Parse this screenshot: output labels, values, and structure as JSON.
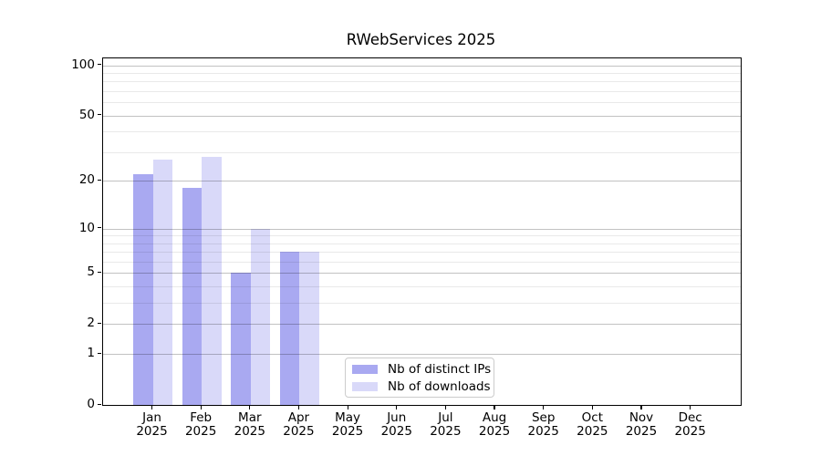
{
  "figure": {
    "background": "#ffffff",
    "text_color": "#000000"
  },
  "chart_data": {
    "type": "bar",
    "title": "RWebServices 2025",
    "categories": [
      "Jan",
      "Feb",
      "Mar",
      "Apr",
      "May",
      "Jun",
      "Jul",
      "Aug",
      "Sep",
      "Oct",
      "Nov",
      "Dec"
    ],
    "category_year_suffix": "2025",
    "series": [
      {
        "name": "Nb of distinct IPs",
        "color": "#a9a9f1",
        "values": [
          22,
          18,
          5,
          7,
          0,
          0,
          0,
          0,
          0,
          0,
          0,
          0
        ]
      },
      {
        "name": "Nb of downloads",
        "color": "#d9d9f9",
        "values": [
          27,
          28,
          10,
          7,
          0,
          0,
          0,
          0,
          0,
          0,
          0,
          0
        ]
      }
    ],
    "xlabel": "",
    "ylabel": "",
    "yscale": "log1p",
    "ylim": [
      0,
      110
    ],
    "yticks": [
      0,
      1,
      2,
      5,
      10,
      20,
      50,
      100
    ],
    "ytick_labels": [
      "0",
      "1",
      "2",
      "5",
      "10",
      "20",
      "50",
      "100"
    ],
    "minor_gridlines": [
      3,
      4,
      6,
      7,
      8,
      9,
      30,
      40,
      60,
      70,
      80,
      90
    ],
    "grid": "both (horizontal only)",
    "legend_position": "lower center inside plot",
    "bar_group": "two bars per month, distinct-IPs left of tick, downloads right of tick"
  }
}
